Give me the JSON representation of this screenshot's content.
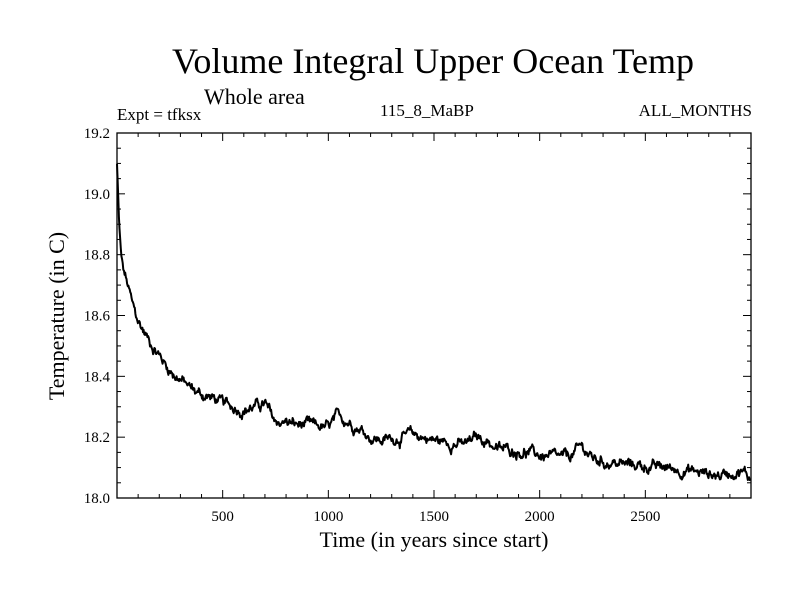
{
  "header": {
    "title": "Volume Integral Upper Ocean Temp",
    "subtitle": "Whole area",
    "experiment": "Expt = tfksx",
    "run_label": "115_8_MaBP",
    "months_label": "ALL_MONTHS"
  },
  "chart_data": {
    "type": "line",
    "title": "Volume Integral Upper Ocean Temp",
    "xlabel": "Time (in years since start)",
    "ylabel": "Temperature (in C)",
    "xlim": [
      0,
      3000
    ],
    "ylim": [
      18.0,
      19.2
    ],
    "xticks": [
      500,
      1000,
      1500,
      2000,
      2500
    ],
    "xtick_labels": [
      "500",
      "1000",
      "1500",
      "2000",
      "2500"
    ],
    "yticks": [
      18.0,
      18.2,
      18.4,
      18.6,
      18.8,
      19.0,
      19.2
    ],
    "ytick_labels": [
      "18.0",
      "18.2",
      "18.4",
      "18.6",
      "18.8",
      "19.0",
      "19.2"
    ],
    "grid": false,
    "series": [
      {
        "name": "Volume integral upper ocean temperature",
        "x": [
          0,
          5,
          10,
          20,
          30,
          50,
          75,
          100,
          150,
          200,
          250,
          300,
          350,
          400,
          450,
          500,
          550,
          600,
          650,
          700,
          730,
          750,
          800,
          850,
          900,
          950,
          1000,
          1050,
          1100,
          1150,
          1200,
          1250,
          1300,
          1350,
          1400,
          1450,
          1500,
          1550,
          1600,
          1650,
          1700,
          1750,
          1800,
          1850,
          1900,
          1950,
          2000,
          2050,
          2100,
          2150,
          2200,
          2250,
          2300,
          2350,
          2400,
          2450,
          2500,
          2550,
          2600,
          2650,
          2700,
          2750,
          2800,
          2850,
          2900,
          2950,
          3000
        ],
        "values": [
          19.1,
          19.0,
          18.9,
          18.8,
          18.75,
          18.7,
          18.63,
          18.58,
          18.52,
          18.47,
          18.42,
          18.39,
          18.36,
          18.34,
          18.33,
          18.31,
          18.3,
          18.29,
          18.3,
          18.31,
          18.27,
          18.25,
          18.25,
          18.24,
          18.24,
          18.235,
          18.23,
          18.27,
          18.25,
          18.23,
          18.2,
          18.19,
          18.195,
          18.2,
          18.21,
          18.2,
          18.19,
          18.185,
          18.18,
          18.175,
          18.2,
          18.19,
          18.16,
          18.16,
          18.155,
          18.15,
          18.14,
          18.135,
          18.13,
          18.14,
          18.17,
          18.13,
          18.12,
          18.115,
          18.11,
          18.11,
          18.105,
          18.1,
          18.1,
          18.095,
          18.09,
          18.085,
          18.08,
          18.075,
          18.085,
          18.09,
          18.065
        ]
      }
    ]
  }
}
